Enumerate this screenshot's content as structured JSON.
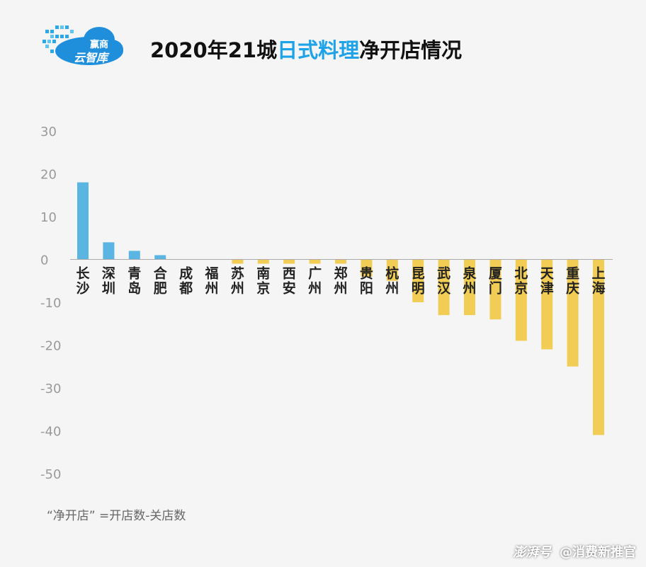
{
  "logo": {
    "line1": "赢商",
    "line2": "云智库",
    "cloud_color": "#1f8fdc"
  },
  "title": {
    "prefix": "2020年21城",
    "highlight": "日式料理",
    "suffix": "净开店情况"
  },
  "footnote": "“净开店” =开店数-关店数",
  "watermark": {
    "brand": "澎湃号",
    "account": "@消费新推官"
  },
  "colors": {
    "positive": "#5bb5e3",
    "negative": "#f2cd55",
    "axis": "#aaaaaa",
    "tick_text": "#9a9a9a",
    "label_text": "#222222"
  },
  "chart_data": {
    "type": "bar",
    "categories": [
      "长沙",
      "深圳",
      "青岛",
      "合肥",
      "成都",
      "福州",
      "苏州",
      "南京",
      "西安",
      "广州",
      "郑州",
      "贵阳",
      "杭州",
      "昆明",
      "武汉",
      "泉州",
      "厦门",
      "北京",
      "天津",
      "重庆",
      "上海"
    ],
    "values": [
      18,
      4,
      2,
      1,
      0,
      0,
      -1,
      -1,
      -1,
      -1,
      -1,
      -4,
      -5,
      -10,
      -13,
      -13,
      -14,
      -19,
      -21,
      -25,
      -41
    ],
    "ylim": [
      -50,
      30
    ],
    "yticks": [
      "30",
      "20",
      "10",
      "0",
      "-10",
      "-20",
      "-30",
      "-40",
      "-50"
    ],
    "title": "2020年21城日式料理净开店情况",
    "xlabel": "",
    "ylabel": "",
    "grid": false,
    "legend": "none"
  }
}
